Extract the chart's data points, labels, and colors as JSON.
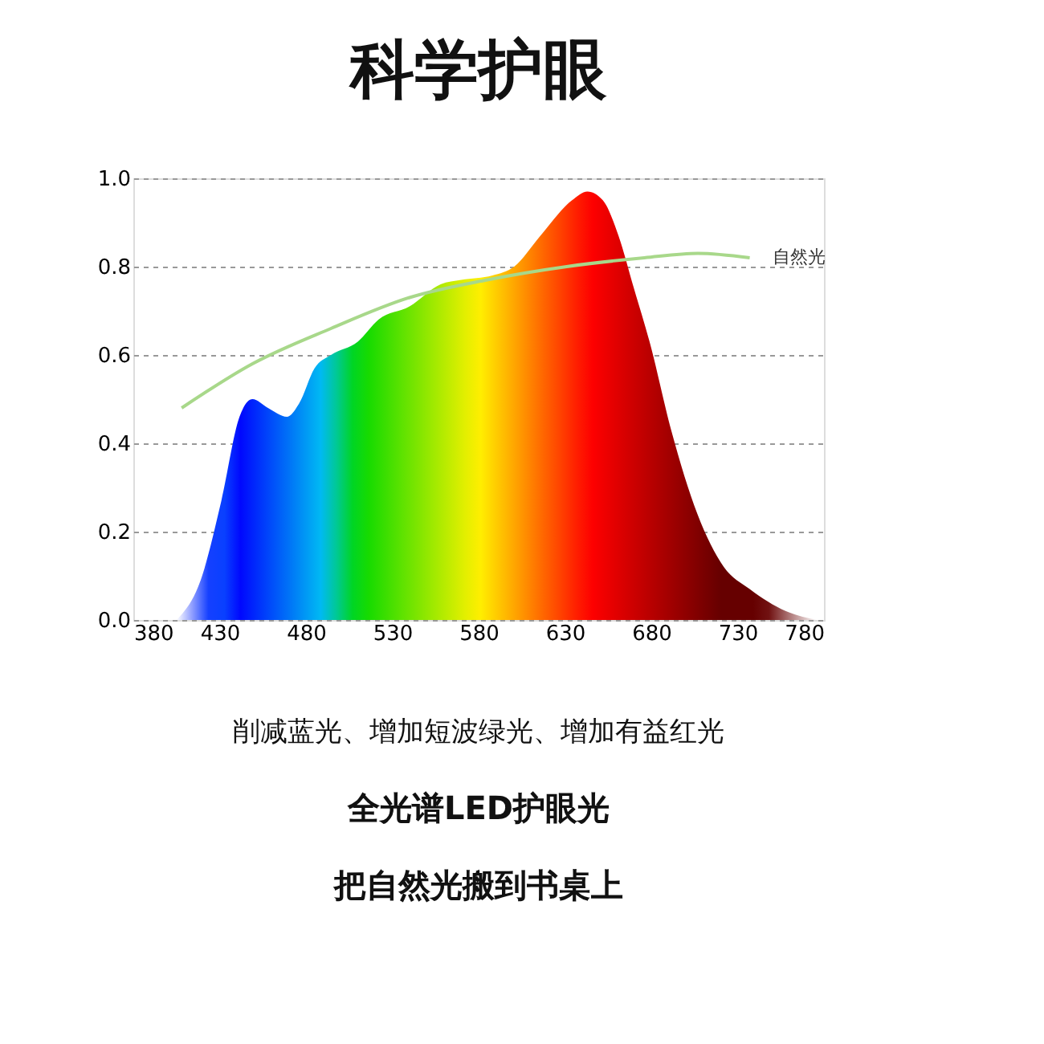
{
  "chart_data": {
    "type": "area",
    "title": "科学护眼",
    "xlim": [
      380,
      780
    ],
    "xticks": [
      380,
      430,
      480,
      530,
      580,
      630,
      680,
      730,
      780
    ],
    "ylim": [
      0,
      1
    ],
    "yticks": [
      {
        "value": 0,
        "label": "0.0"
      },
      0.2,
      0.4,
      0.6,
      0.8,
      {
        "value": 1,
        "label": "1.0"
      }
    ],
    "grid": "y",
    "series": [
      {
        "x": [
          405,
          419,
          431,
          441.5,
          449,
          458,
          469,
          476,
          485,
          494.5,
          510,
          522,
          540,
          558,
          570,
          588,
          600.6,
          615.8,
          634,
          643,
          652,
          661,
          670,
          679,
          691.5,
          706.7,
          722,
          737,
          758,
          776
        ],
        "values": [
          0,
          0.09,
          0.27,
          0.46,
          0.5,
          0.48,
          0.46,
          0.49,
          0.57,
          0.6,
          0.63,
          0.68,
          0.71,
          0.76,
          0.77,
          0.78,
          0.8,
          0.87,
          0.95,
          0.97,
          0.95,
          0.87,
          0.75,
          0.63,
          0.43,
          0.24,
          0.12,
          0.07,
          0.02,
          0
        ]
      },
      {
        "type": "line",
        "name": "自然光",
        "color": "#a8d88a",
        "x": [
          408,
          449,
          494.5,
          540,
          585,
          631,
          676,
          707,
          737
        ],
        "values": [
          0.48,
          0.58,
          0.66,
          0.73,
          0.77,
          0.8,
          0.82,
          0.83,
          0.82
        ]
      }
    ],
    "annotations": [
      "削减蓝光、增加短波绿光、增加有益红光",
      "全光谱LED护眼光",
      "把自然光搬到书桌上"
    ]
  }
}
